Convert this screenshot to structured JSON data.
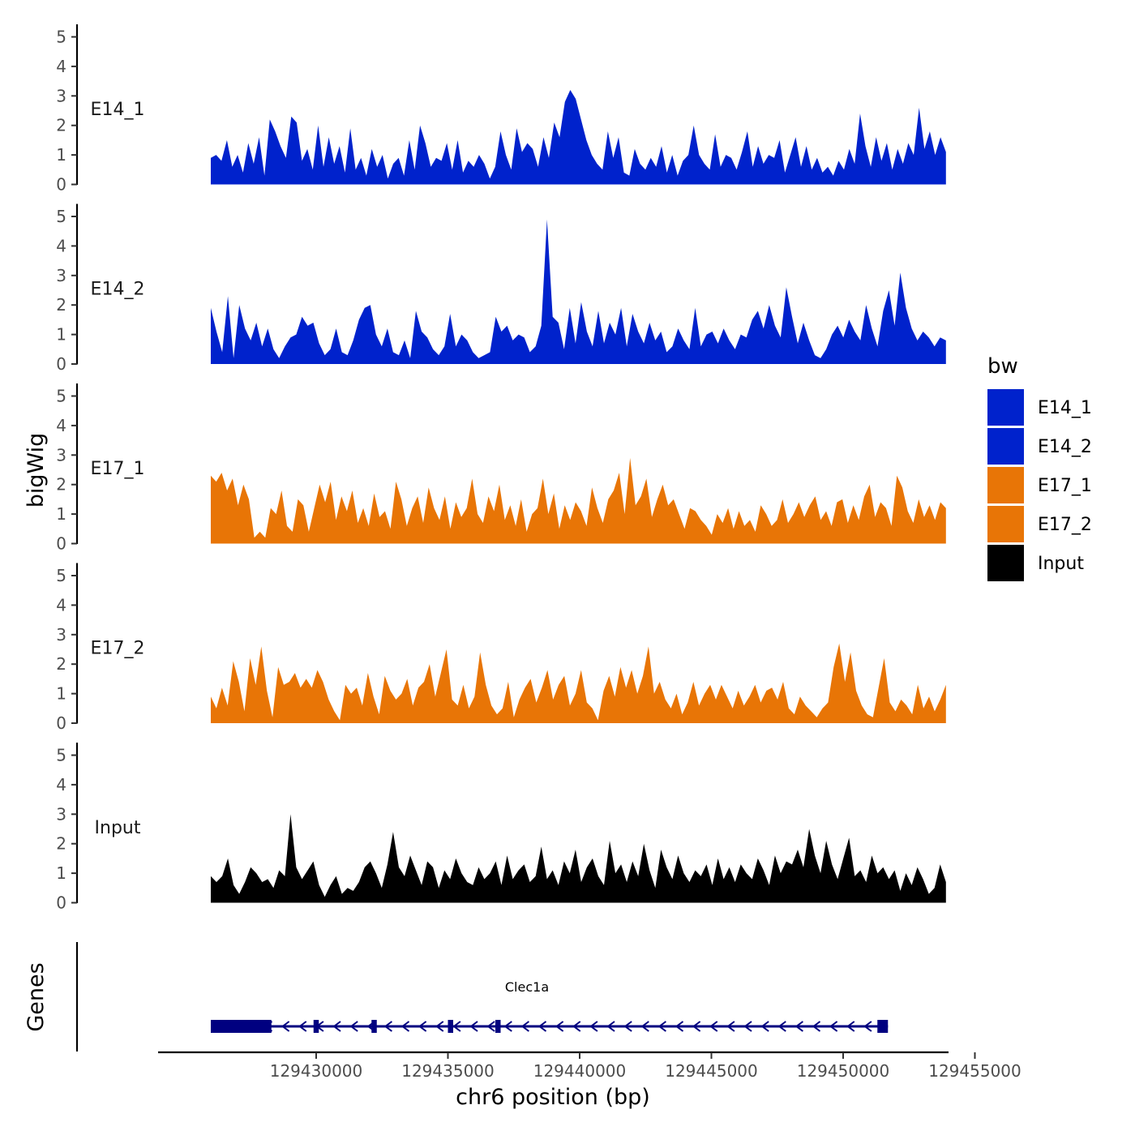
{
  "chart_data": {
    "type": "area",
    "title": "",
    "ylabel": "bigWig",
    "xlabel": "chr6 position (bp)",
    "genes_label": "Genes",
    "xlim": [
      129424000,
      129454000
    ],
    "ylim": [
      0,
      5
    ],
    "y_ticks": [
      "0",
      "1",
      "2",
      "3",
      "4",
      "5"
    ],
    "x_ticks": [
      {
        "value": 129430000,
        "label": "129430000"
      },
      {
        "value": 129435000,
        "label": "129435000"
      },
      {
        "value": 129440000,
        "label": "129440000"
      },
      {
        "value": 129445000,
        "label": "129445000"
      },
      {
        "value": 129450000,
        "label": "129450000"
      },
      {
        "value": 129455000,
        "label": "129455000"
      }
    ],
    "legend": {
      "title": "bw",
      "position": "right",
      "entries": [
        {
          "name": "E14_1",
          "color": "#0022cc"
        },
        {
          "name": "E14_2",
          "color": "#0022cc"
        },
        {
          "name": "E17_1",
          "color": "#e87506"
        },
        {
          "name": "E17_2",
          "color": "#e87506"
        },
        {
          "name": "Input",
          "color": "#000000"
        }
      ]
    },
    "series": [
      {
        "name": "E14_1",
        "color": "#0022cc",
        "x_start": 129426000,
        "x_end": 129453900,
        "values": [
          0.9,
          1.0,
          0.8,
          1.5,
          0.6,
          1.0,
          0.4,
          1.4,
          0.7,
          1.6,
          0.3,
          2.2,
          1.8,
          1.3,
          0.9,
          2.3,
          2.1,
          0.8,
          1.2,
          0.5,
          2.0,
          0.6,
          1.6,
          0.7,
          1.3,
          0.4,
          1.9,
          0.5,
          0.9,
          0.3,
          1.2,
          0.6,
          1.0,
          0.2,
          0.7,
          0.9,
          0.3,
          1.5,
          0.5,
          2.0,
          1.4,
          0.6,
          0.9,
          0.8,
          1.4,
          0.5,
          1.5,
          0.4,
          0.8,
          0.6,
          1.0,
          0.7,
          0.2,
          0.6,
          1.8,
          1.0,
          0.5,
          1.9,
          1.1,
          1.4,
          1.2,
          0.6,
          1.6,
          0.9,
          2.1,
          1.6,
          2.8,
          3.2,
          2.9,
          2.2,
          1.5,
          1.0,
          0.7,
          0.5,
          1.8,
          0.9,
          1.6,
          0.4,
          0.3,
          1.2,
          0.7,
          0.5,
          0.9,
          0.6,
          1.3,
          0.4,
          1.0,
          0.3,
          0.8,
          1.0,
          2.0,
          1.0,
          0.7,
          0.5,
          1.7,
          0.6,
          1.0,
          0.9,
          0.5,
          1.1,
          1.8,
          0.6,
          1.3,
          0.7,
          1.0,
          0.9,
          1.5,
          0.4,
          1.0,
          1.6,
          0.6,
          1.3,
          0.5,
          0.9,
          0.4,
          0.6,
          0.3,
          0.8,
          0.5,
          1.2,
          0.7,
          2.4,
          1.3,
          0.6,
          1.6,
          0.8,
          1.4,
          0.5,
          1.2,
          0.7,
          1.4,
          1.0,
          2.6,
          1.2,
          1.8,
          1.0,
          1.6,
          1.1
        ]
      },
      {
        "name": "E14_2",
        "color": "#0022cc",
        "x_start": 129426000,
        "x_end": 129453900,
        "values": [
          1.9,
          1.1,
          0.4,
          2.3,
          0.2,
          2.0,
          1.2,
          0.8,
          1.4,
          0.6,
          1.2,
          0.5,
          0.2,
          0.6,
          0.9,
          1.0,
          1.6,
          1.3,
          1.4,
          0.7,
          0.3,
          0.5,
          1.2,
          0.4,
          0.3,
          0.8,
          1.5,
          1.9,
          2.0,
          1.0,
          0.6,
          1.2,
          0.4,
          0.3,
          0.8,
          0.2,
          1.8,
          1.1,
          0.9,
          0.5,
          0.3,
          0.6,
          1.7,
          0.6,
          1.0,
          0.8,
          0.4,
          0.2,
          0.3,
          0.4,
          1.6,
          1.1,
          1.3,
          0.8,
          1.0,
          0.9,
          0.4,
          0.6,
          1.3,
          4.9,
          1.6,
          1.4,
          0.5,
          1.9,
          0.7,
          2.1,
          1.1,
          0.6,
          1.8,
          0.7,
          1.4,
          1.0,
          1.9,
          0.6,
          1.7,
          1.1,
          0.7,
          1.4,
          0.8,
          1.1,
          0.4,
          0.6,
          1.2,
          0.8,
          0.5,
          1.9,
          0.6,
          1.0,
          1.1,
          0.7,
          1.2,
          0.8,
          0.5,
          1.0,
          0.9,
          1.5,
          1.8,
          1.2,
          2.0,
          1.3,
          0.9,
          2.6,
          1.6,
          0.7,
          1.4,
          0.8,
          0.3,
          0.2,
          0.5,
          1.0,
          1.3,
          0.9,
          1.5,
          1.1,
          0.8,
          2.0,
          1.2,
          0.6,
          1.8,
          2.5,
          1.3,
          3.1,
          1.9,
          1.2,
          0.8,
          1.1,
          0.9,
          0.6,
          0.9,
          0.8
        ]
      },
      {
        "name": "E17_1",
        "color": "#e87506",
        "x_start": 129426000,
        "x_end": 129453900,
        "values": [
          2.3,
          2.1,
          2.4,
          1.8,
          2.2,
          1.3,
          2.0,
          1.5,
          0.2,
          0.4,
          0.2,
          1.2,
          1.0,
          1.8,
          0.6,
          0.4,
          1.5,
          1.3,
          0.4,
          1.2,
          2.0,
          1.4,
          2.1,
          0.8,
          1.6,
          1.1,
          1.8,
          0.7,
          1.2,
          0.6,
          1.7,
          0.9,
          1.1,
          0.5,
          2.1,
          1.5,
          0.6,
          1.2,
          1.6,
          0.7,
          1.9,
          1.2,
          0.8,
          1.6,
          0.5,
          1.4,
          0.9,
          1.2,
          2.2,
          1.0,
          0.7,
          1.6,
          1.1,
          2.0,
          0.8,
          1.3,
          0.6,
          1.5,
          0.4,
          1.0,
          1.2,
          2.2,
          1.0,
          1.7,
          0.5,
          1.3,
          0.8,
          1.4,
          1.1,
          0.6,
          1.9,
          1.2,
          0.7,
          1.5,
          1.8,
          2.4,
          1.0,
          2.9,
          1.3,
          1.6,
          2.2,
          0.9,
          1.5,
          2.0,
          1.3,
          1.5,
          1.0,
          0.5,
          1.2,
          1.1,
          0.8,
          0.6,
          0.3,
          1.0,
          0.7,
          1.2,
          0.5,
          1.1,
          0.6,
          0.8,
          0.4,
          1.3,
          1.0,
          0.6,
          0.8,
          1.5,
          0.7,
          1.0,
          1.4,
          0.9,
          1.3,
          1.6,
          0.8,
          1.1,
          0.6,
          1.4,
          1.5,
          0.7,
          1.3,
          0.8,
          1.6,
          2.0,
          0.9,
          1.4,
          1.2,
          0.6,
          2.3,
          1.9,
          1.1,
          0.7,
          1.5,
          0.9,
          1.3,
          0.8,
          1.4,
          1.2
        ]
      },
      {
        "name": "E17_2",
        "color": "#e87506",
        "x_start": 129426000,
        "x_end": 129453900,
        "values": [
          0.9,
          0.5,
          1.2,
          0.6,
          2.1,
          1.4,
          0.4,
          2.2,
          1.3,
          2.6,
          1.1,
          0.2,
          1.9,
          1.3,
          1.4,
          1.7,
          1.2,
          1.5,
          1.2,
          1.8,
          1.4,
          0.8,
          0.4,
          0.1,
          1.3,
          1.0,
          1.2,
          0.6,
          1.7,
          0.9,
          0.3,
          1.6,
          1.1,
          0.8,
          1.0,
          1.5,
          0.6,
          1.2,
          1.4,
          2.0,
          0.9,
          1.7,
          2.5,
          0.8,
          0.6,
          1.3,
          0.5,
          0.9,
          2.4,
          1.3,
          0.6,
          0.3,
          0.5,
          1.4,
          0.2,
          0.8,
          1.2,
          1.5,
          0.7,
          1.2,
          1.8,
          0.8,
          1.3,
          1.6,
          0.6,
          1.0,
          1.8,
          0.7,
          0.5,
          0.1,
          1.1,
          1.6,
          0.9,
          1.9,
          1.2,
          1.8,
          1.0,
          1.6,
          2.6,
          1.0,
          1.4,
          0.8,
          0.5,
          1.0,
          0.3,
          0.7,
          1.4,
          0.6,
          1.0,
          1.3,
          0.8,
          1.3,
          0.9,
          0.5,
          1.1,
          0.6,
          0.9,
          1.3,
          0.7,
          1.1,
          1.2,
          0.8,
          1.4,
          0.5,
          0.3,
          0.9,
          0.6,
          0.4,
          0.2,
          0.5,
          0.7,
          1.9,
          2.7,
          1.4,
          2.4,
          1.1,
          0.6,
          0.3,
          0.2,
          1.2,
          2.2,
          0.7,
          0.4,
          0.8,
          0.6,
          0.3,
          1.3,
          0.5,
          0.9,
          0.4,
          0.8,
          1.3
        ]
      },
      {
        "name": "Input",
        "color": "#000000",
        "x_start": 129426000,
        "x_end": 129453900,
        "values": [
          0.9,
          0.7,
          0.9,
          1.5,
          0.6,
          0.3,
          0.7,
          1.2,
          1.0,
          0.7,
          0.8,
          0.5,
          1.1,
          0.9,
          3.0,
          1.2,
          0.8,
          1.1,
          1.4,
          0.6,
          0.2,
          0.6,
          0.9,
          0.3,
          0.5,
          0.4,
          0.7,
          1.2,
          1.4,
          1.0,
          0.5,
          1.3,
          2.4,
          1.2,
          0.9,
          1.6,
          1.1,
          0.6,
          1.4,
          1.2,
          0.5,
          1.1,
          0.8,
          1.5,
          1.0,
          0.7,
          0.6,
          1.2,
          0.8,
          1.0,
          1.4,
          0.6,
          1.6,
          0.8,
          1.1,
          1.3,
          0.7,
          0.9,
          1.9,
          0.8,
          1.1,
          0.6,
          1.4,
          1.0,
          1.8,
          0.7,
          1.2,
          1.5,
          0.9,
          0.6,
          2.1,
          1.0,
          1.3,
          0.7,
          1.4,
          0.9,
          2.0,
          1.1,
          0.5,
          1.8,
          1.2,
          0.8,
          1.6,
          1.0,
          0.7,
          1.1,
          0.9,
          1.3,
          0.6,
          1.5,
          0.8,
          1.2,
          0.7,
          1.3,
          1.0,
          0.8,
          1.5,
          1.1,
          0.6,
          1.6,
          1.0,
          1.4,
          1.3,
          1.8,
          1.2,
          2.5,
          1.6,
          1.0,
          2.1,
          1.3,
          0.8,
          1.5,
          2.2,
          0.9,
          1.1,
          0.7,
          1.6,
          1.0,
          1.2,
          0.8,
          1.1,
          0.4,
          1.0,
          0.6,
          1.2,
          0.8,
          0.3,
          0.5,
          1.3,
          0.7
        ]
      }
    ],
    "gene": {
      "name": "Clec1a",
      "strand": "-",
      "start": 129426000,
      "end": 129451700,
      "color": "#000080",
      "exons": [
        [
          129426000,
          129428300
        ],
        [
          129429900,
          129430100
        ],
        [
          129432100,
          129432300
        ],
        [
          129435000,
          129435200
        ],
        [
          129436800,
          129437000
        ],
        [
          129451300,
          129451700
        ]
      ]
    }
  }
}
